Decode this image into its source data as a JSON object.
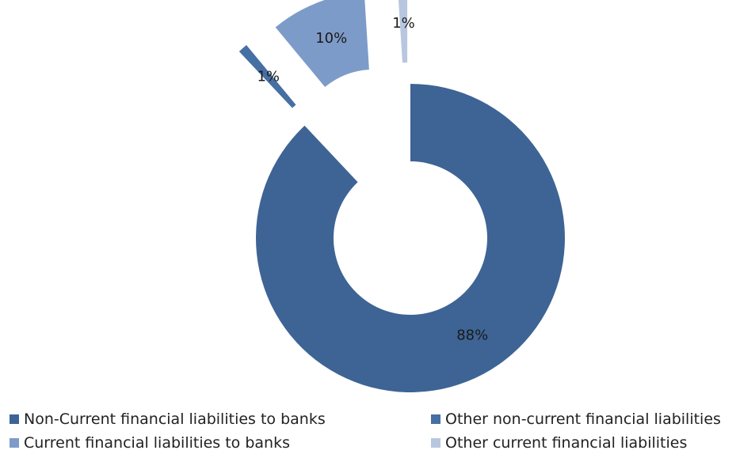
{
  "chart_data": {
    "type": "pie",
    "title": "",
    "donut": true,
    "slices": [
      {
        "label": "Non-Current financial liabilities to banks",
        "value": 88,
        "display": "88%",
        "color": "#3d6494",
        "exploded": false
      },
      {
        "label": "Other non-current financial liabilities",
        "value": 1,
        "display": "1%",
        "color": "#466fa3",
        "exploded": true
      },
      {
        "label": "Current financial liabilities to banks",
        "value": 10,
        "display": "10%",
        "color": "#7d9bc9",
        "exploded": true
      },
      {
        "label": "Other current financial liabilities",
        "value": 1,
        "display": "1%",
        "color": "#b8c6e0",
        "exploded": true
      }
    ],
    "legend": {
      "placement": "bottom",
      "entries": [
        "Non-Current financial liabilities to banks",
        "Other non-current financial liabilities",
        "Current financial liabilities to banks",
        "Other current financial liabilities"
      ]
    }
  }
}
